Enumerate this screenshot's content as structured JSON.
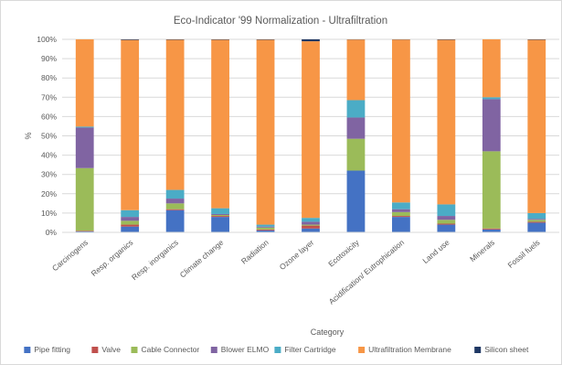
{
  "chart_data": {
    "type": "bar",
    "stacked": true,
    "percent_stacked": true,
    "title": "Eco-Indicator '99 Normalization - Ultrafiltration",
    "xlabel": "Category",
    "ylabel": "%",
    "ylim": [
      0,
      100
    ],
    "y_ticks": [
      "0%",
      "10%",
      "20%",
      "30%",
      "40%",
      "50%",
      "60%",
      "70%",
      "80%",
      "90%",
      "100%"
    ],
    "grid": true,
    "legend_position": "bottom",
    "categories": [
      "Carcinogens",
      "Resp. organics",
      "Resp. inorganics",
      "Climate change",
      "Radiation",
      "Ozone layer",
      "Ecotoxicity",
      "Acidification/ Eutrophication",
      "Land use",
      "Minerals",
      "Fossil fuels"
    ],
    "series": [
      {
        "name": "Pipe fitting",
        "color": "#4472c4",
        "values": [
          0.5,
          3,
          11.5,
          8,
          1,
          2,
          32,
          8,
          4,
          1.5,
          5
        ]
      },
      {
        "name": "Valve",
        "color": "#c0504d",
        "values": [
          0.3,
          1,
          0.5,
          0.5,
          0.5,
          1.5,
          0,
          0.5,
          0.5,
          0.5,
          0.5
        ]
      },
      {
        "name": "Cable Connector",
        "color": "#9bbb59",
        "values": [
          32.5,
          2,
          3,
          0.5,
          1,
          0.5,
          16.5,
          2,
          2,
          40,
          1
        ]
      },
      {
        "name": "Blower ELMO",
        "color": "#8064a2",
        "values": [
          21,
          2,
          2.5,
          0.5,
          0.5,
          1.5,
          11,
          1.5,
          2,
          27,
          0.5
        ]
      },
      {
        "name": "Filter Cartridge",
        "color": "#4bacc6",
        "values": [
          0.5,
          3.5,
          4.5,
          3,
          1,
          2,
          9,
          3.5,
          6,
          1,
          3
        ]
      },
      {
        "name": "Ultrafiltration Membrane",
        "color": "#f79646",
        "values": [
          45.2,
          88.2,
          77.8,
          87.3,
          95.8,
          91.5,
          31.4,
          84.4,
          85.3,
          30,
          89.8
        ]
      },
      {
        "name": "Silicon sheet",
        "color": "#1f3864",
        "values": [
          0,
          0.3,
          0.2,
          0.2,
          0.2,
          1,
          0.1,
          0.1,
          0.2,
          0,
          0.2
        ]
      }
    ]
  }
}
